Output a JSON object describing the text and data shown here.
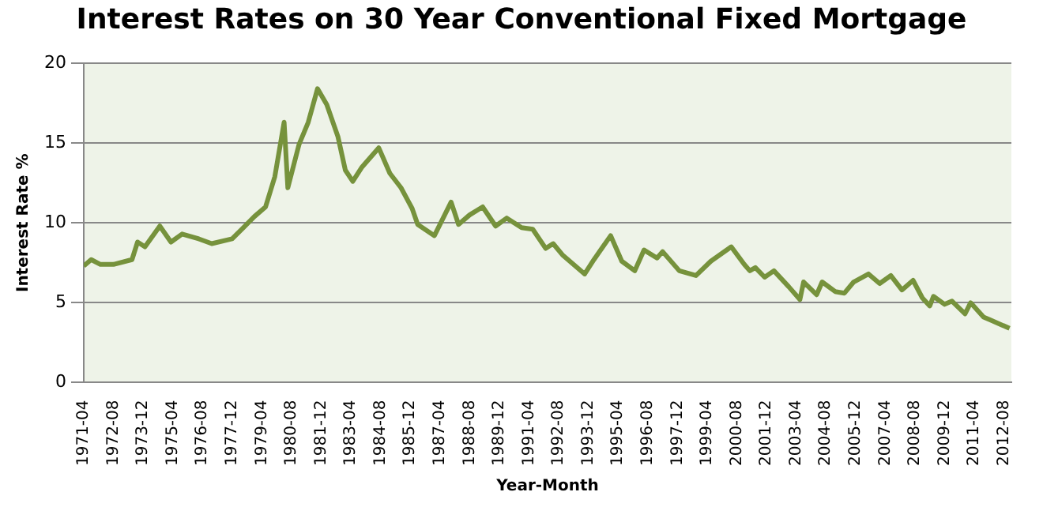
{
  "chart_data": {
    "type": "line",
    "title": "Interest Rates on 30 Year Conventional Fixed Mortgage",
    "xlabel": "Year-Month",
    "ylabel": "Interest Rate %",
    "x": [
      "1971-04",
      "1971-08",
      "1972-01",
      "1972-08",
      "1973-06",
      "1973-09",
      "1974-01",
      "1974-09",
      "1975-03",
      "1975-09",
      "1976-06",
      "1977-01",
      "1977-12",
      "1978-06",
      "1978-12",
      "1979-06",
      "1979-11",
      "1980-04",
      "1980-06",
      "1980-12",
      "1981-05",
      "1981-10",
      "1982-03",
      "1982-09",
      "1983-01",
      "1983-05",
      "1983-10",
      "1984-07",
      "1985-01",
      "1985-07",
      "1986-01",
      "1986-04",
      "1987-01",
      "1987-10",
      "1988-02",
      "1988-08",
      "1989-03",
      "1989-10",
      "1990-04",
      "1990-12",
      "1991-06",
      "1992-01",
      "1992-05",
      "1992-10",
      "1993-10",
      "1994-03",
      "1994-12",
      "1995-06",
      "1996-01",
      "1996-06",
      "1997-01",
      "1997-04",
      "1998-01",
      "1998-10",
      "1999-06",
      "2000-05",
      "2000-12",
      "2001-03",
      "2001-06",
      "2001-11",
      "2002-04",
      "2002-12",
      "2003-06",
      "2003-08",
      "2004-03",
      "2004-06",
      "2005-01",
      "2005-06",
      "2005-11",
      "2006-07",
      "2007-01",
      "2007-07",
      "2008-01",
      "2008-07",
      "2008-12",
      "2009-04",
      "2009-06",
      "2009-12",
      "2010-04",
      "2010-11",
      "2011-02",
      "2011-09",
      "2012-01",
      "2012-07",
      "2012-11"
    ],
    "series": [
      {
        "color": "#76923c",
        "values": [
          7.3,
          7.7,
          7.4,
          7.4,
          7.7,
          8.8,
          8.5,
          9.8,
          8.8,
          9.3,
          9.0,
          8.7,
          9.0,
          9.7,
          10.4,
          11.0,
          12.9,
          16.3,
          12.2,
          14.9,
          16.3,
          18.4,
          17.4,
          15.4,
          13.3,
          12.6,
          13.5,
          14.7,
          13.1,
          12.2,
          10.9,
          9.9,
          9.2,
          11.3,
          9.9,
          10.5,
          11.0,
          9.8,
          10.3,
          9.7,
          9.6,
          8.4,
          8.7,
          8.0,
          6.8,
          7.7,
          9.2,
          7.6,
          7.0,
          8.3,
          7.8,
          8.2,
          7.0,
          6.7,
          7.6,
          8.5,
          7.4,
          7.0,
          7.2,
          6.6,
          7.0,
          6.0,
          5.2,
          6.3,
          5.5,
          6.3,
          5.7,
          5.6,
          6.3,
          6.8,
          6.2,
          6.7,
          5.8,
          6.4,
          5.3,
          4.8,
          5.4,
          4.9,
          5.1,
          4.3,
          5.0,
          4.1,
          3.9,
          3.6,
          3.4
        ]
      }
    ],
    "xlim": [
      "1971-04",
      "2012-12"
    ],
    "xticks": [
      "1971-04",
      "1972-08",
      "1973-12",
      "1975-04",
      "1976-08",
      "1977-12",
      "1979-04",
      "1980-08",
      "1981-12",
      "1983-04",
      "1984-08",
      "1985-12",
      "1987-04",
      "1988-08",
      "1989-12",
      "1991-04",
      "1992-08",
      "1993-12",
      "1995-04",
      "1996-08",
      "1997-12",
      "1999-04",
      "2000-08",
      "2001-12",
      "2003-04",
      "2004-08",
      "2005-12",
      "2007-04",
      "2008-08",
      "2009-12",
      "2011-04",
      "2012-08"
    ],
    "ylim": [
      0,
      20
    ],
    "yticks": [
      0,
      5,
      10,
      15,
      20
    ],
    "grid": "y",
    "legend": false,
    "marker": "none",
    "line_style": "solid"
  }
}
